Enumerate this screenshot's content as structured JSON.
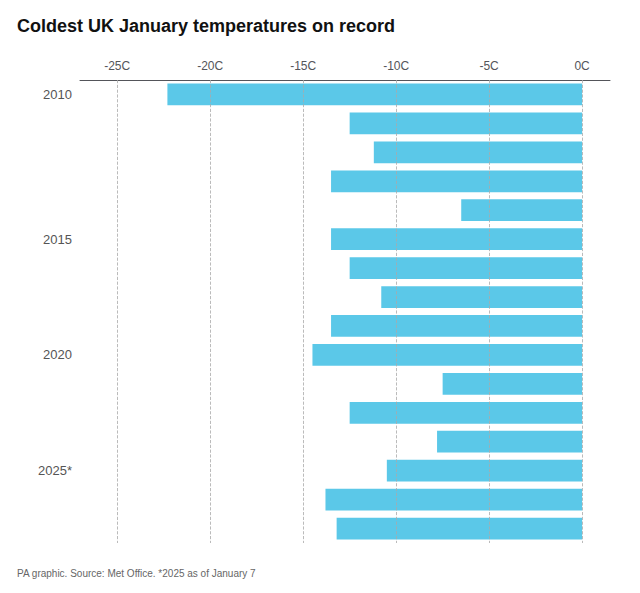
{
  "chart_data": {
    "type": "bar",
    "orientation": "horizontal",
    "title": "Coldest UK January temperatures on record",
    "subtitle": "PA graphic. Source: Met Office. *2025 as of January 7",
    "categories": [
      "2010",
      null,
      null,
      null,
      null,
      "2015",
      null,
      null,
      null,
      "2020",
      null,
      null,
      null,
      "2025*",
      null,
      null
    ],
    "values": [
      -22.3,
      -12.5,
      -11.2,
      -13.5,
      -6.5,
      -13.5,
      -12.5,
      -10.8,
      -13.5,
      -14.5,
      -7.5,
      -12.5,
      -7.8,
      -10.5,
      -13.8,
      -13.2
    ],
    "color": "#5bc8e8",
    "xlim": [
      -27,
      1.5
    ],
    "xticks": [
      {
        "value": -25,
        "label": "-25C"
      },
      {
        "value": -20,
        "label": "-20C"
      },
      {
        "value": -15,
        "label": "-15C"
      },
      {
        "value": -10,
        "label": "-10C"
      },
      {
        "value": -5,
        "label": "-5C"
      },
      {
        "value": 0,
        "label": "0C"
      }
    ],
    "grid": true
  }
}
